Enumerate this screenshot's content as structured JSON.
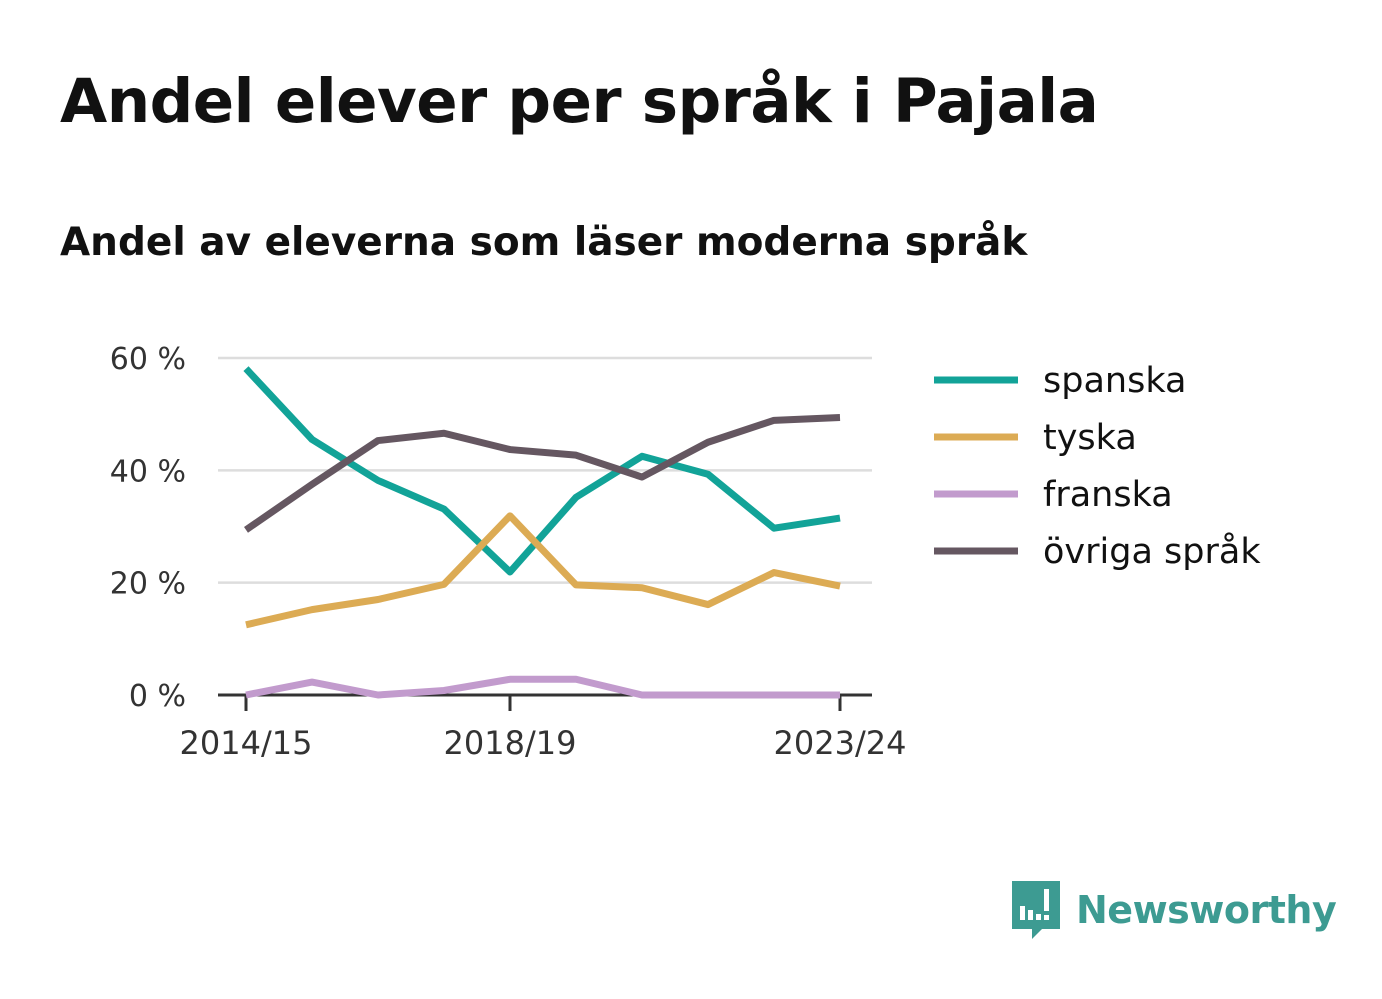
{
  "title": "Andel elever per språk i Pajala",
  "subtitle": "Andel av eleverna som läser moderna språk",
  "brand": {
    "name": "Newsworthy",
    "icon": "newsworthy-logo-icon",
    "color": "#3d9b92"
  },
  "chart_data": {
    "type": "line",
    "title": "Andel elever per språk i Pajala",
    "subtitle": "Andel av eleverna som läser moderna språk",
    "xlabel": "",
    "ylabel": "",
    "x": [
      "2014/15",
      "2015/16",
      "2016/17",
      "2017/18",
      "2018/19",
      "2019/20",
      "2020/21",
      "2021/22",
      "2022/23",
      "2023/24"
    ],
    "x_ticks": [
      "2014/15",
      "2018/19",
      "2023/24"
    ],
    "y_ticks": [
      {
        "value": 0,
        "label": "0 %"
      },
      {
        "value": 20,
        "label": "20 %"
      },
      {
        "value": 40,
        "label": "40 %"
      },
      {
        "value": 60,
        "label": "60 %"
      }
    ],
    "ylim": [
      0,
      60
    ],
    "grid": true,
    "legend_position": "right",
    "series": [
      {
        "name": "spanska",
        "color": "#12a398",
        "values": [
          58.1,
          45.5,
          38.2,
          33.1,
          21.9,
          35.2,
          42.5,
          39.3,
          29.7,
          31.5
        ]
      },
      {
        "name": "tyska",
        "color": "#dcab54",
        "values": [
          12.5,
          15.2,
          17.0,
          19.7,
          31.9,
          19.6,
          19.1,
          16.1,
          21.8,
          19.4
        ]
      },
      {
        "name": "franska",
        "color": "#c29bcd",
        "values": [
          0.0,
          2.3,
          0.0,
          0.8,
          2.8,
          2.8,
          0.0,
          0.0,
          0.0,
          0.0
        ]
      },
      {
        "name": "övriga språk",
        "color": "#655761",
        "values": [
          29.4,
          37.5,
          45.3,
          46.6,
          43.7,
          42.7,
          38.8,
          45.0,
          48.9,
          49.4
        ]
      }
    ]
  }
}
